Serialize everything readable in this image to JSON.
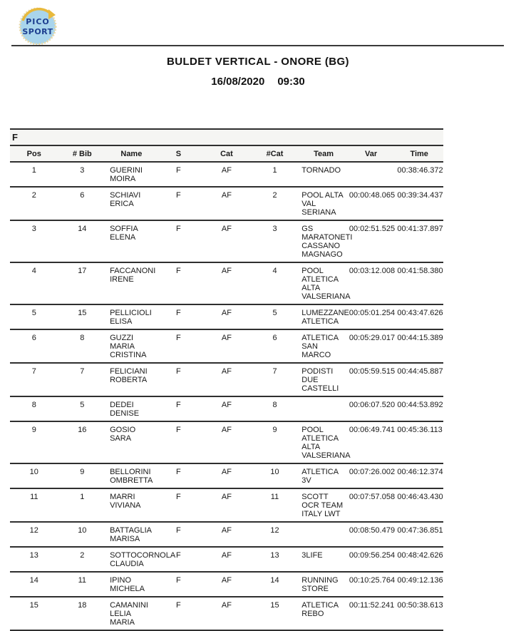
{
  "logo": {
    "line1": "PICO",
    "line2": "SPORT"
  },
  "header": {
    "title": "BULDET VERTICAL - ONORE (BG)",
    "date": "16/08/2020",
    "time": "09:30"
  },
  "table": {
    "group_label": "F",
    "columns": {
      "pos": "Pos",
      "bib": "# Bib",
      "name": "Name",
      "s": "S",
      "cat": "Cat",
      "ncat": "#Cat",
      "team": "Team",
      "var": "Var",
      "time": "Time"
    },
    "rows": [
      {
        "pos": "1",
        "bib": "3",
        "name": "GUERINI MOIRA",
        "s": "F",
        "cat": "AF",
        "ncat": "1",
        "team": "TORNADO",
        "var": "",
        "time": "00:38:46.372"
      },
      {
        "pos": "2",
        "bib": "6",
        "name": "SCHIAVI ERICA",
        "s": "F",
        "cat": "AF",
        "ncat": "2",
        "team": "POOL ALTA VAL SERIANA",
        "var": "00:00:48.065",
        "time": "00:39:34.437"
      },
      {
        "pos": "3",
        "bib": "14",
        "name": "SOFFIA ELENA",
        "s": "F",
        "cat": "AF",
        "ncat": "3",
        "team": "GS MARATONETI CASSANO MAGNAGO",
        "var": "00:02:51.525",
        "time": "00:41:37.897"
      },
      {
        "pos": "4",
        "bib": "17",
        "name": "FACCANONI IRENE",
        "s": "F",
        "cat": "AF",
        "ncat": "4",
        "team": "POOL ATLETICA ALTA VALSERIANA",
        "var": "00:03:12.008",
        "time": "00:41:58.380"
      },
      {
        "pos": "5",
        "bib": "15",
        "name": "PELLICIOLI ELISA",
        "s": "F",
        "cat": "AF",
        "ncat": "5",
        "team": "LUMEZZANE ATLETICA",
        "var": "00:05:01.254",
        "time": "00:43:47.626"
      },
      {
        "pos": "6",
        "bib": "8",
        "name": "GUZZI MARIA CRISTINA",
        "s": "F",
        "cat": "AF",
        "ncat": "6",
        "team": "ATLETICA SAN MARCO",
        "var": "00:05:29.017",
        "time": "00:44:15.389"
      },
      {
        "pos": "7",
        "bib": "7",
        "name": "FELICIANI ROBERTA",
        "s": "F",
        "cat": "AF",
        "ncat": "7",
        "team": "PODISTI DUE CASTELLI",
        "var": "00:05:59.515",
        "time": "00:44:45.887"
      },
      {
        "pos": "8",
        "bib": "5",
        "name": "DEDEI DENISE",
        "s": "F",
        "cat": "AF",
        "ncat": "8",
        "team": "",
        "var": "00:06:07.520",
        "time": "00:44:53.892"
      },
      {
        "pos": "9",
        "bib": "16",
        "name": "GOSIO SARA",
        "s": "F",
        "cat": "AF",
        "ncat": "9",
        "team": "POOL ATLETICA ALTA VALSERIANA",
        "var": "00:06:49.741",
        "time": "00:45:36.113"
      },
      {
        "pos": "10",
        "bib": "9",
        "name": "BELLORINI OMBRETTA",
        "s": "F",
        "cat": "AF",
        "ncat": "10",
        "team": "ATLETICA 3V",
        "var": "00:07:26.002",
        "time": "00:46:12.374"
      },
      {
        "pos": "11",
        "bib": "1",
        "name": "MARRI VIVIANA",
        "s": "F",
        "cat": "AF",
        "ncat": "11",
        "team": "SCOTT OCR TEAM ITALY LWT",
        "var": "00:07:57.058",
        "time": "00:46:43.430"
      },
      {
        "pos": "12",
        "bib": "10",
        "name": "BATTAGLIA MARISA",
        "s": "F",
        "cat": "AF",
        "ncat": "12",
        "team": "",
        "var": "00:08:50.479",
        "time": "00:47:36.851"
      },
      {
        "pos": "13",
        "bib": "2",
        "name": "SOTTOCORNOLA CLAUDIA",
        "s": "F",
        "cat": "AF",
        "ncat": "13",
        "team": "3LIFE",
        "var": "00:09:56.254",
        "time": "00:48:42.626"
      },
      {
        "pos": "14",
        "bib": "11",
        "name": "IPINO MICHELA",
        "s": "F",
        "cat": "AF",
        "ncat": "14",
        "team": "RUNNING STORE",
        "var": "00:10:25.764",
        "time": "00:49:12.136"
      },
      {
        "pos": "15",
        "bib": "18",
        "name": "CAMANINI LELIA MARIA",
        "s": "F",
        "cat": "AF",
        "ncat": "15",
        "team": "ATLETICA REBO",
        "var": "00:11:52.241",
        "time": "00:50:38.613"
      }
    ]
  },
  "colors": {
    "logo_circle_fill": "#a9d5ec",
    "logo_text": "#1d3e8f",
    "logo_arrow": "#e8b93c",
    "rule_dark": "#3a3a3a",
    "table_border": "#2f2f2f",
    "header_bg": "#f5f5f3"
  }
}
